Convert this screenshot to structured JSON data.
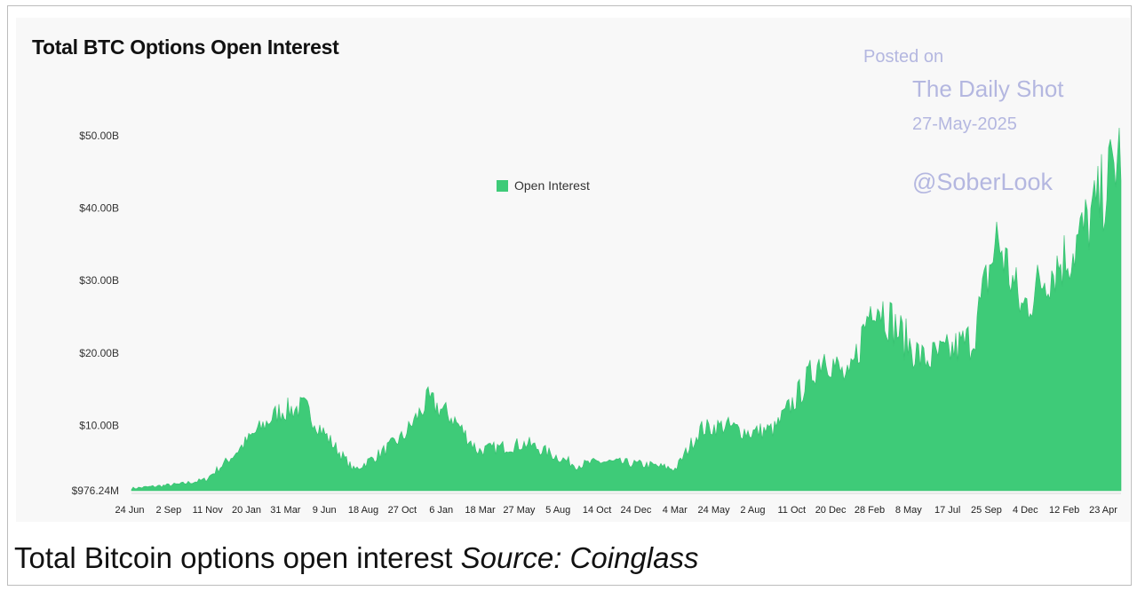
{
  "chart_data": {
    "type": "area",
    "title": "Total BTC Options Open Interest",
    "legend": {
      "label": "Open Interest",
      "position": "top-center",
      "color": "#3ecb78"
    },
    "y_ticks": [
      "$976.24M",
      "$10.00B",
      "$20.00B",
      "$30.00B",
      "$40.00B",
      "$50.00B"
    ],
    "y_tick_values": [
      0.976,
      10,
      20,
      30,
      40,
      50
    ],
    "ylim": [
      0.976,
      50
    ],
    "x_ticks": [
      "24 Jun",
      "2 Sep",
      "11 Nov",
      "20 Jan",
      "31 Mar",
      "9 Jun",
      "18 Aug",
      "27 Oct",
      "6 Jan",
      "18 Mar",
      "27 May",
      "5 Aug",
      "14 Oct",
      "24 Dec",
      "4 Mar",
      "24 May",
      "2 Aug",
      "11 Oct",
      "20 Dec",
      "28 Feb",
      "8 May",
      "17 Jul",
      "25 Sep",
      "4 Dec",
      "12 Feb",
      "23 Apr"
    ],
    "series": [
      {
        "values_billion_usd": [
          1.3,
          1.6,
          1.9,
          2.5,
          5.5,
          9.0,
          12.0,
          12.5,
          8.0,
          3.8,
          6.0,
          8.5,
          13.5,
          11.0,
          6.5,
          7.0,
          7.5,
          6.0,
          4.5,
          5.0,
          4.8,
          4.5,
          4.0,
          9.5,
          10.0,
          9.0,
          9.5,
          14.5,
          20.0,
          16.0,
          28.0,
          23.0,
          19.0,
          20.0,
          22.0,
          36.0,
          26.0,
          31.0,
          34.0,
          40.0,
          48.0
        ]
      }
    ]
  },
  "watermark": {
    "line1": "Posted on",
    "line2": "The Daily Shot",
    "line3": "27-May-2025",
    "line4": "@SoberLook"
  },
  "caption": {
    "main": "Total Bitcoin options open interest",
    "source": "Source: Coinglass"
  }
}
